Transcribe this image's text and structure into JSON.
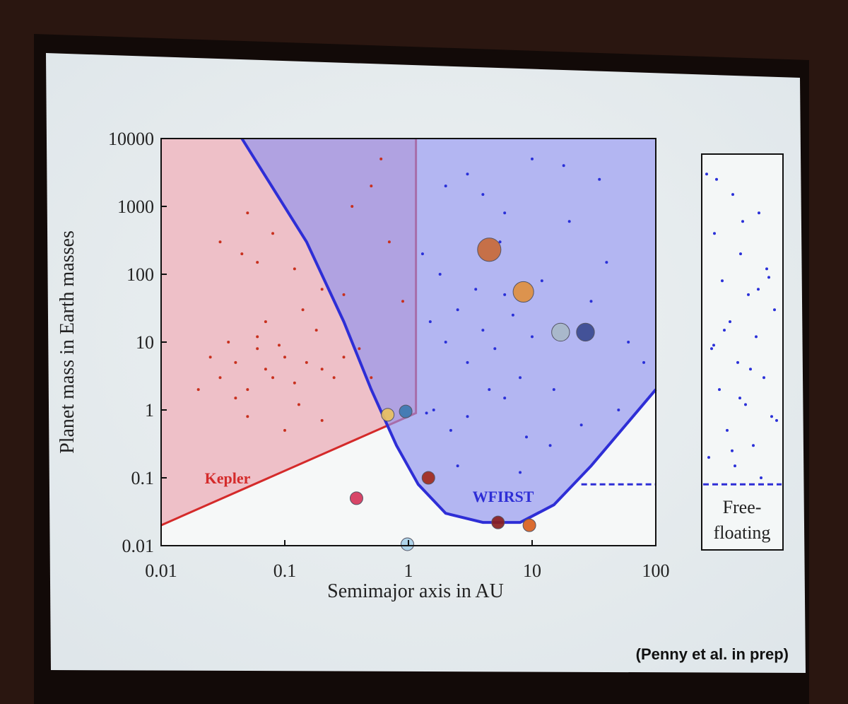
{
  "chart_data": {
    "type": "scatter",
    "xlabel": "Semimajor axis in AU",
    "ylabel": "Planet mass in Earth masses",
    "log_x": true,
    "log_y": true,
    "xlim": [
      0.01,
      100
    ],
    "ylim": [
      0.01,
      10000
    ],
    "xticks": [
      0.01,
      0.1,
      1,
      10,
      100
    ],
    "yticks": [
      0.01,
      0.1,
      1,
      10,
      100,
      1000,
      10000
    ],
    "regions": [
      {
        "label": "Kepler",
        "color": "#d42a2a",
        "fill": "#eaa2ad",
        "x": [
          0.01,
          1.15,
          1.15
        ],
        "y": [
          0.02,
          0.9,
          10000
        ]
      },
      {
        "label": "WFIRST",
        "color": "#2e2ed6",
        "fill": "#8f92ee",
        "x": [
          0.045,
          0.15,
          0.3,
          0.5,
          0.8,
          1.2,
          2,
          4,
          8,
          15,
          30,
          100
        ],
        "y": [
          10000,
          300,
          20,
          2,
          0.3,
          0.08,
          0.03,
          0.022,
          0.022,
          0.04,
          0.15,
          2
        ]
      }
    ],
    "detection_limit": {
      "color": "#2e2ed6",
      "x": [
        25,
        100
      ],
      "y": [
        0.08,
        0.08
      ]
    },
    "series": [
      {
        "color": "#c8301e",
        "x": [
          0.03,
          0.04,
          0.05,
          0.06,
          0.07,
          0.08,
          0.1,
          0.12,
          0.15,
          0.2,
          0.25,
          0.3,
          0.04,
          0.06,
          0.09,
          0.13,
          0.18,
          0.02,
          0.025,
          0.035,
          0.05,
          0.07,
          0.1,
          0.14,
          0.2,
          0.3,
          0.4,
          0.5,
          0.03,
          0.045,
          0.05,
          0.06,
          0.08,
          0.12,
          0.2,
          0.35,
          0.5,
          0.7,
          0.9,
          0.6
        ],
        "y": [
          3,
          5,
          2,
          8,
          4,
          3,
          6,
          2.5,
          5,
          4,
          3,
          6,
          1.5,
          12,
          9,
          1.2,
          15,
          2,
          6,
          10,
          0.8,
          20,
          0.5,
          30,
          0.7,
          50,
          8,
          3,
          300,
          200,
          800,
          150,
          400,
          120,
          60,
          1000,
          2000,
          300,
          40,
          5000
        ]
      },
      {
        "color": "#2a30d8",
        "x": [
          1.5,
          2,
          2.5,
          3,
          4,
          5,
          6,
          8,
          10,
          1.3,
          1.8,
          3.5,
          5.5,
          7,
          12,
          15,
          20,
          30,
          40,
          60,
          1.6,
          2.2,
          3,
          4.5,
          6,
          9,
          14,
          25,
          50,
          80,
          2,
          3,
          4,
          6,
          10,
          18,
          35,
          1.4,
          2.5,
          8
        ],
        "y": [
          20,
          10,
          30,
          5,
          15,
          8,
          50,
          3,
          12,
          200,
          100,
          60,
          300,
          25,
          80,
          2,
          600,
          40,
          150,
          10,
          1,
          0.5,
          0.8,
          2,
          1.5,
          0.4,
          0.3,
          0.6,
          1,
          5,
          2000,
          3000,
          1500,
          800,
          5000,
          4000,
          2500,
          0.9,
          0.15,
          0.12
        ]
      },
      {
        "x": [
          0.38,
          0.68,
          0.95,
          1.45,
          4.5,
          8.5,
          17,
          27,
          5.3,
          9.5,
          0.98
        ],
        "y": [
          0.05,
          0.85,
          0.95,
          0.1,
          230,
          55,
          14,
          14,
          0.022,
          0.02,
          0.0105
        ],
        "colors": [
          "#d5355a",
          "#e8c060",
          "#3d78b0",
          "#a22a1c",
          "#c86a3a",
          "#e09040",
          "#a8b8c8",
          "#3a4a90",
          "#8a2020",
          "#d86020",
          "#a8d0e8"
        ]
      }
    ],
    "free_floating": {
      "label_lines": [
        "Free-",
        "floating"
      ],
      "color": "#2a30d8",
      "values": [
        3000,
        1500,
        800,
        400,
        200,
        120,
        80,
        50,
        30,
        20,
        12,
        8,
        5,
        3,
        2,
        1.2,
        0.8,
        0.5,
        0.3,
        0.2,
        0.15,
        0.1,
        2500,
        600,
        90,
        15,
        4,
        0.7,
        0.25,
        60,
        9,
        1.5
      ]
    },
    "credit": "(Penny et al. in prep)"
  }
}
